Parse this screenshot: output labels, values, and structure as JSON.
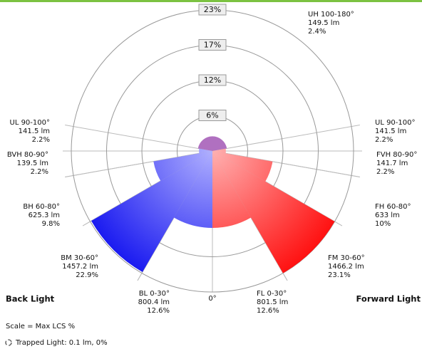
{
  "chart_data": {
    "type": "polar",
    "back_label": "Back Light",
    "forward_label": "Forward Light",
    "nadir_label": "0°",
    "scale_note": "Scale = Max LCS %",
    "trapped_note": "Trapped Light: 0.1 lm, 0%",
    "rlim": [
      0,
      23.1
    ],
    "rticks": [
      {
        "value": 5.775,
        "label": "6%"
      },
      {
        "value": 11.55,
        "label": "12%"
      },
      {
        "value": 17.325,
        "label": "17%"
      },
      {
        "value": 23.1,
        "label": "23%"
      }
    ],
    "colors": {
      "forward": "#ff1010",
      "back": "#1818f0",
      "up": "#b070c0"
    },
    "zones": [
      {
        "label": "UH 100-180°",
        "side": "up",
        "angles": [
          100,
          180
        ],
        "lumens_label": "149.5 lm",
        "percent": 2.4,
        "percent_label": "2.4%"
      },
      {
        "label": "UL 90-100°",
        "side": "forward",
        "angles": [
          90,
          100
        ],
        "lumens_label": "141.5 lm",
        "percent": 2.2,
        "percent_label": "2.2%"
      },
      {
        "label": "FVH 80-90°",
        "side": "forward",
        "angles": [
          80,
          90
        ],
        "lumens_label": "141.7 lm",
        "percent": 2.2,
        "percent_label": "2.2%"
      },
      {
        "label": "FH 60-80°",
        "side": "forward",
        "angles": [
          60,
          80
        ],
        "lumens_label": "633 lm",
        "percent": 10,
        "percent_label": "10%"
      },
      {
        "label": "FM 30-60°",
        "side": "forward",
        "angles": [
          30,
          60
        ],
        "lumens_label": "1466.2 lm",
        "percent": 23.1,
        "percent_label": "23.1%"
      },
      {
        "label": "FL 0-30°",
        "side": "forward",
        "angles": [
          0,
          30
        ],
        "lumens_label": "801.5 lm",
        "percent": 12.6,
        "percent_label": "12.6%"
      },
      {
        "label": "BL 0-30°",
        "side": "back",
        "angles": [
          0,
          30
        ],
        "lumens_label": "800.4 lm",
        "percent": 12.6,
        "percent_label": "12.6%"
      },
      {
        "label": "BM 30-60°",
        "side": "back",
        "angles": [
          30,
          60
        ],
        "lumens_label": "1457.2 lm",
        "percent": 22.9,
        "percent_label": "22.9%"
      },
      {
        "label": "BH 60-80°",
        "side": "back",
        "angles": [
          60,
          80
        ],
        "lumens_label": "625.3 lm",
        "percent": 9.8,
        "percent_label": "9.8%"
      },
      {
        "label": "BVH 80-90°",
        "side": "back",
        "angles": [
          80,
          90
        ],
        "lumens_label": "139.5 lm",
        "percent": 2.2,
        "percent_label": "2.2%"
      },
      {
        "label": "UL 90-100°",
        "side": "back",
        "angles": [
          90,
          100
        ],
        "lumens_label": "141.5 lm",
        "percent": 2.2,
        "percent_label": "2.2%"
      }
    ]
  }
}
